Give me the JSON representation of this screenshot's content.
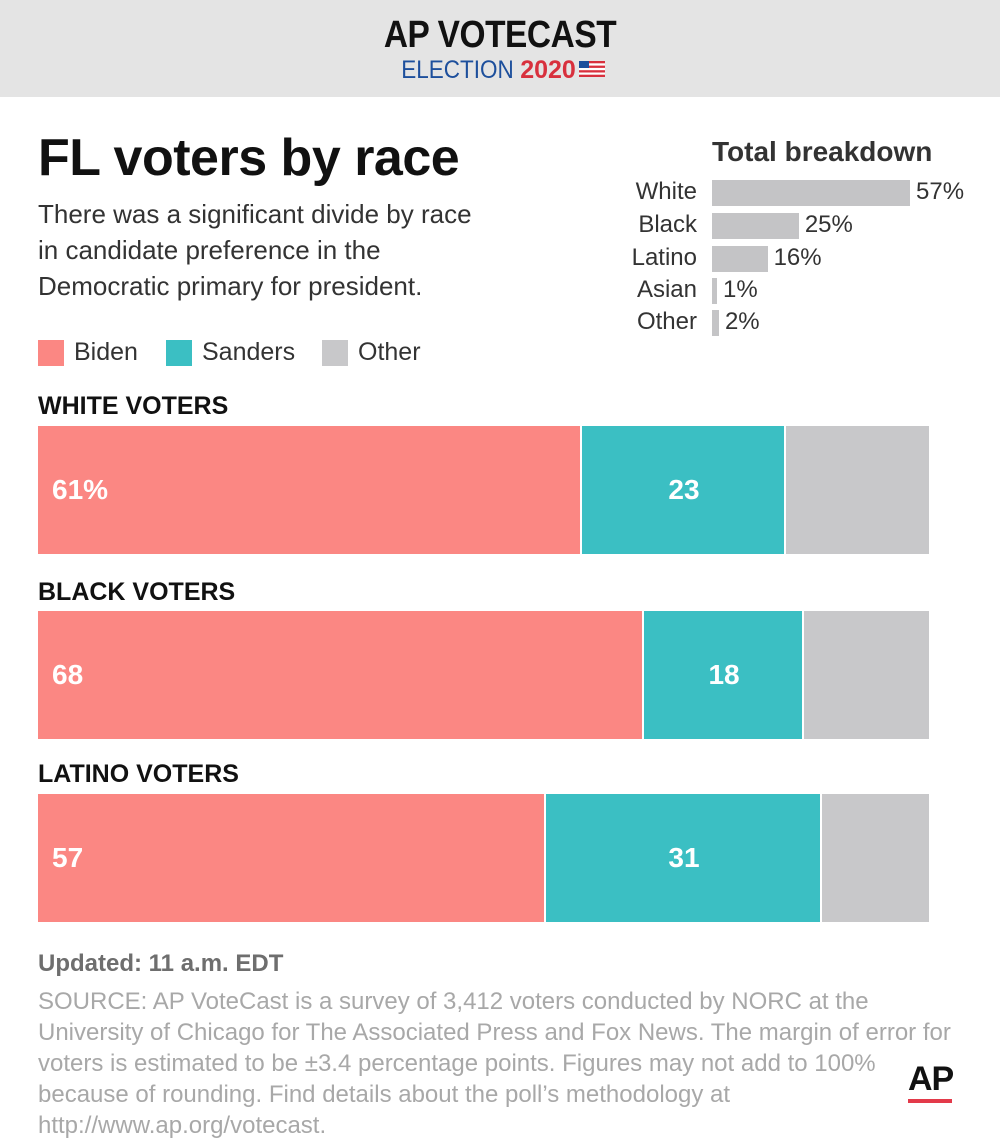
{
  "header": {
    "title": "AP VOTECAST",
    "subtitle_election": "ELECTION",
    "subtitle_year": "2020"
  },
  "title": "FL voters by race",
  "subtitle": "There was a significant divide by race in candidate preference in the Democratic primary for president.",
  "legend": [
    {
      "label": "Biden",
      "color": "#fb8783"
    },
    {
      "label": "Sanders",
      "color": "#3bbfc3"
    },
    {
      "label": "Other",
      "color": "#c8c8ca"
    }
  ],
  "chart_data": [
    {
      "type": "bar",
      "orientation": "horizontal",
      "title": "Total breakdown",
      "categories": [
        "White",
        "Black",
        "Latino",
        "Asian",
        "Other"
      ],
      "values": [
        57,
        25,
        16,
        1,
        2
      ],
      "value_labels": [
        "57%",
        "25%",
        "16%",
        "1%",
        "2%"
      ],
      "xlim": [
        0,
        57
      ],
      "color": "#c4c4c6"
    },
    {
      "type": "bar",
      "orientation": "horizontal",
      "stacked": true,
      "categories": [
        "WHITE VOTERS",
        "BLACK VOTERS",
        "LATINO VOTERS"
      ],
      "series": [
        {
          "name": "Biden",
          "values": [
            61,
            68,
            57
          ],
          "value_labels": [
            "61%",
            "68",
            "57"
          ],
          "color": "#fb8783"
        },
        {
          "name": "Sanders",
          "values": [
            23,
            18,
            31
          ],
          "value_labels": [
            "23",
            "18",
            "31"
          ],
          "color": "#3bbfc3"
        },
        {
          "name": "Other",
          "values": [
            16,
            14,
            12
          ],
          "value_labels": [
            "",
            "",
            ""
          ],
          "color": "#c8c8ca"
        }
      ],
      "xlim": [
        0,
        100
      ],
      "grid": false,
      "legend_position": "top-left"
    }
  ],
  "updated": "Updated: 11 a.m. EDT",
  "source": "SOURCE: AP VoteCast is a survey of 3,412 voters conducted by NORC at the University of Chicago for The Associated Press and Fox News. The margin of error for voters is estimated to be ±3.4 percentage points. Figures may not add to 100% because of rounding. Find details about the poll’s methodology at http://www.ap.org/votecast.",
  "logo": "AP"
}
